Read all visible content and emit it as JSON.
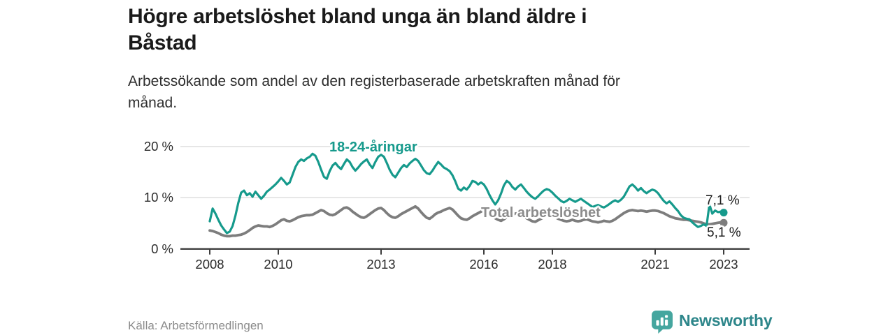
{
  "header": {
    "title_line1": "Högre arbetslöshet bland unga än bland äldre i",
    "title_line2": "Båstad",
    "subtitle_line1": "Arbetssökande som andel av den registerbaserade arbetskraften månad för",
    "subtitle_line2": "månad."
  },
  "chart_data": {
    "type": "line",
    "unit": "%",
    "grid": "horizontal gridlines at 10 and 20, dark baseline at 0",
    "x_start_year": 2008.0,
    "x_step_years": 0.0833333,
    "x_tick_labels": [
      "2008",
      "2010",
      "2013",
      "2016",
      "2018",
      "2021",
      "2023"
    ],
    "x_tick_years": [
      2008,
      2010,
      2013,
      2016,
      2018,
      2021,
      2023
    ],
    "y_ticks": [
      {
        "value": 0,
        "label": "0 %"
      },
      {
        "value": 10,
        "label": "10 %"
      },
      {
        "value": 20,
        "label": "20 %"
      }
    ],
    "ylim": [
      0,
      21.5
    ],
    "series": [
      {
        "name": "18-24-åringar",
        "color": "#169a8c",
        "end_label": "7,1 %",
        "end_value": 7.1,
        "values": [
          5.4,
          7.9,
          6.9,
          5.7,
          4.6,
          3.8,
          3.1,
          3.4,
          4.5,
          6.5,
          9.0,
          11.0,
          11.4,
          10.5,
          10.9,
          10.2,
          11.2,
          10.5,
          9.8,
          10.4,
          11.2,
          11.6,
          12.1,
          12.6,
          13.2,
          13.9,
          13.3,
          12.6,
          13.0,
          14.5,
          16.0,
          17.0,
          17.5,
          17.2,
          17.7,
          18.0,
          18.6,
          18.2,
          17.0,
          15.5,
          14.1,
          13.7,
          15.2,
          16.3,
          16.8,
          16.1,
          15.6,
          16.6,
          17.5,
          17.0,
          16.0,
          15.3,
          15.9,
          16.6,
          17.1,
          17.5,
          16.5,
          15.8,
          17.0,
          18.0,
          18.4,
          18.0,
          16.8,
          15.5,
          14.5,
          14.0,
          14.9,
          15.8,
          16.4,
          16.0,
          16.7,
          17.2,
          17.6,
          17.2,
          16.3,
          15.4,
          14.8,
          14.6,
          15.3,
          16.2,
          17.0,
          16.5,
          15.9,
          15.6,
          15.2,
          14.4,
          13.2,
          11.8,
          11.4,
          12.0,
          11.6,
          12.3,
          13.3,
          13.1,
          12.6,
          13.0,
          12.6,
          11.7,
          10.5,
          9.5,
          8.7,
          9.5,
          10.8,
          12.4,
          13.3,
          12.9,
          12.1,
          11.6,
          12.2,
          12.6,
          11.9,
          11.2,
          10.6,
          10.1,
          9.8,
          10.3,
          10.9,
          11.4,
          11.7,
          11.5,
          11.0,
          10.4,
          9.9,
          9.4,
          9.1,
          9.4,
          9.8,
          9.5,
          9.2,
          9.5,
          9.8,
          9.4,
          9.0,
          8.6,
          8.2,
          8.4,
          8.6,
          8.3,
          8.1,
          8.4,
          8.8,
          9.2,
          9.5,
          9.2,
          9.6,
          10.2,
          11.2,
          12.2,
          12.6,
          12.1,
          11.4,
          11.9,
          11.3,
          10.9,
          11.3,
          11.6,
          11.4,
          10.9,
          10.1,
          9.4,
          8.9,
          9.3,
          8.7,
          8.0,
          7.4,
          6.6,
          6.1,
          5.9,
          5.8,
          5.2,
          4.7,
          4.3,
          4.5,
          4.8,
          4.5,
          8.7,
          6.9,
          7.5,
          7.2,
          7.3,
          7.1
        ]
      },
      {
        "name": "Total arbetslöshet",
        "color": "#7d7d7d",
        "end_label": "5,1 %",
        "end_value": 5.1,
        "values": [
          3.6,
          3.5,
          3.3,
          3.1,
          2.8,
          2.6,
          2.5,
          2.5,
          2.6,
          2.6,
          2.7,
          2.8,
          3.0,
          3.3,
          3.7,
          4.1,
          4.4,
          4.6,
          4.5,
          4.4,
          4.4,
          4.3,
          4.5,
          4.8,
          5.2,
          5.6,
          5.8,
          5.5,
          5.4,
          5.6,
          5.9,
          6.2,
          6.4,
          6.5,
          6.6,
          6.6,
          6.7,
          7.0,
          7.3,
          7.6,
          7.4,
          7.0,
          6.7,
          6.6,
          6.8,
          7.2,
          7.6,
          8.0,
          8.1,
          7.8,
          7.3,
          6.9,
          6.5,
          6.2,
          6.1,
          6.4,
          6.8,
          7.2,
          7.6,
          7.9,
          8.0,
          7.6,
          7.0,
          6.5,
          6.2,
          6.1,
          6.4,
          6.8,
          7.1,
          7.4,
          7.7,
          8.0,
          8.3,
          7.9,
          7.2,
          6.6,
          6.1,
          5.9,
          6.3,
          6.8,
          7.1,
          7.3,
          7.6,
          7.8,
          8.0,
          7.7,
          7.1,
          6.5,
          6.0,
          5.8,
          5.7,
          6.0,
          6.4,
          6.7,
          7.0,
          7.3,
          7.5,
          7.3,
          6.9,
          6.4,
          6.0,
          5.7,
          5.5,
          5.8,
          6.2,
          6.5,
          6.7,
          6.9,
          7.0,
          6.8,
          6.4,
          6.0,
          5.7,
          5.4,
          5.3,
          5.6,
          5.9,
          6.2,
          6.4,
          6.5,
          6.4,
          6.2,
          5.9,
          5.7,
          5.5,
          5.4,
          5.5,
          5.7,
          5.5,
          5.4,
          5.5,
          5.7,
          5.8,
          5.6,
          5.4,
          5.3,
          5.2,
          5.3,
          5.5,
          5.4,
          5.3,
          5.5,
          5.8,
          6.2,
          6.6,
          7.0,
          7.3,
          7.5,
          7.6,
          7.5,
          7.4,
          7.5,
          7.4,
          7.3,
          7.4,
          7.5,
          7.5,
          7.4,
          7.2,
          7.0,
          6.7,
          6.4,
          6.2,
          6.0,
          5.9,
          5.8,
          5.7,
          5.7,
          5.6,
          5.5,
          5.4,
          5.3,
          5.2,
          5.0,
          4.8,
          4.8,
          4.9,
          5.0,
          5.1,
          5.2,
          5.1
        ]
      }
    ]
  },
  "footer": {
    "source": "Källa: Arbetsförmedlingen",
    "brand": "Newsworthy"
  },
  "colors": {
    "youth_line": "#169a8c",
    "total_line": "#7d7d7d",
    "total_label": "#8c8c8c",
    "grid": "#d8d8d8",
    "axis": "#3d3d3d",
    "title_text": "#1a1a1a",
    "brand_icon": "#45a69f",
    "brand_text": "#2d868a"
  }
}
